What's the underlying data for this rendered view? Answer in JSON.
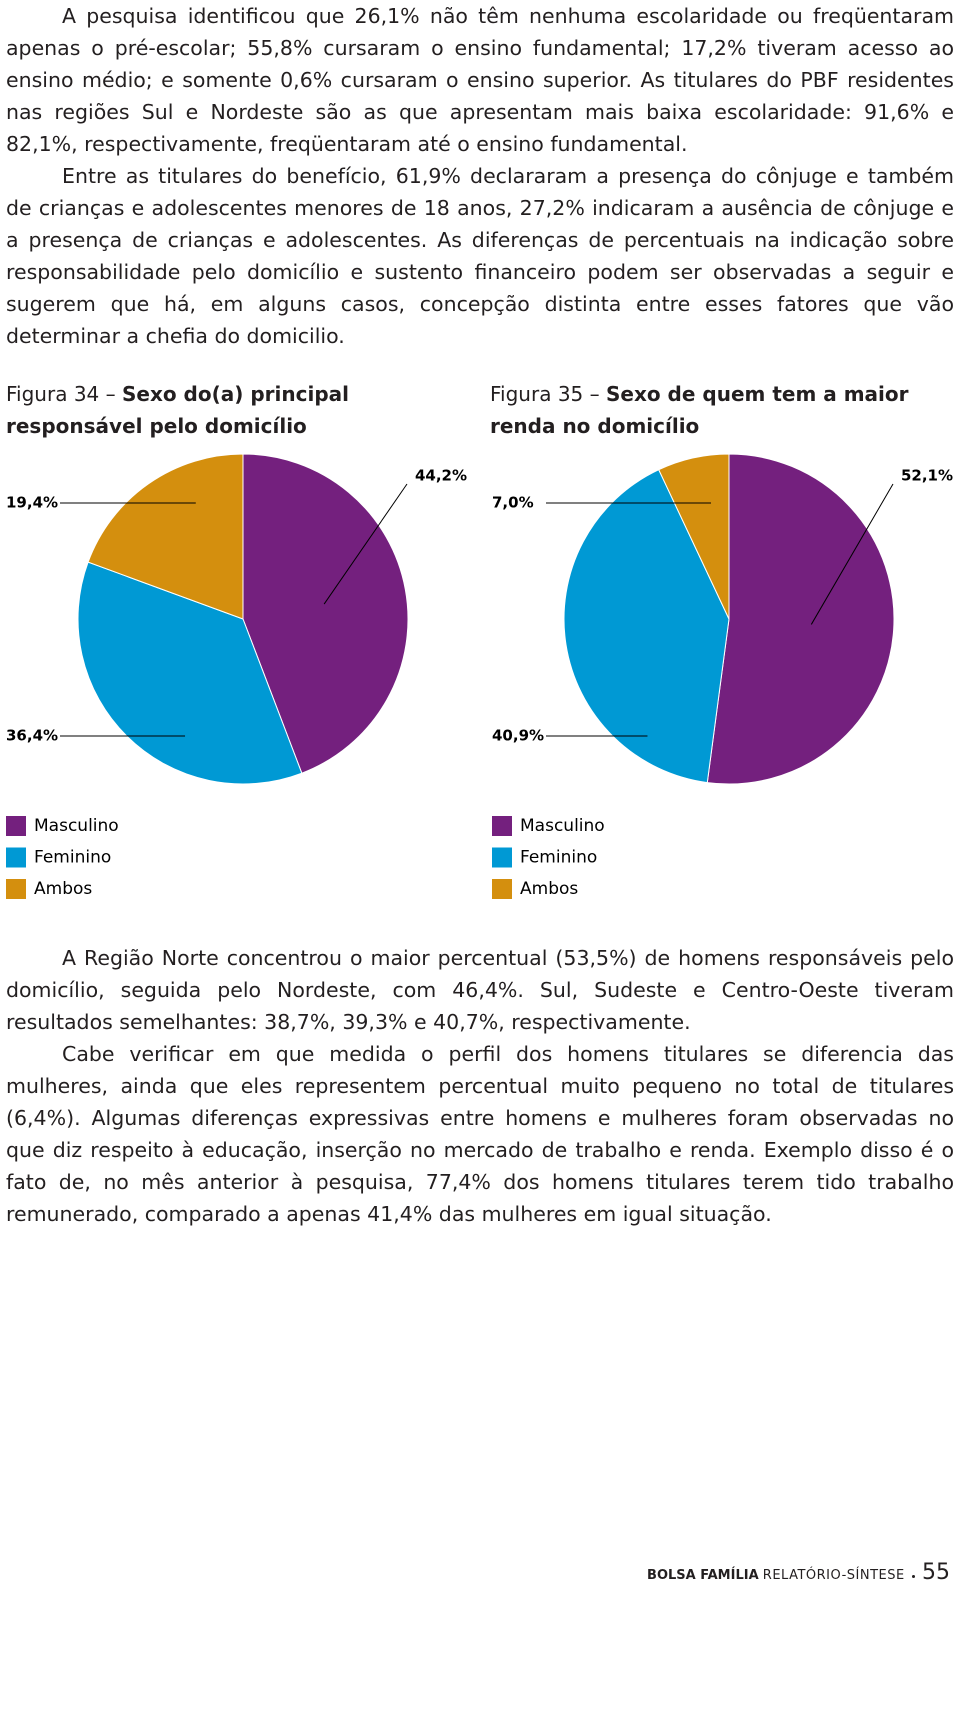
{
  "text_before": [
    "A pesquisa identificou que 26,1% não têm nenhuma escolaridade ou freqüentaram apenas o pré-escolar; 55,8% cursaram o ensino fundamental; 17,2% tiveram acesso ao ensino médio; e somente 0,6% cursaram o ensino superior. As titulares do PBF residentes nas regiões Sul e Nordeste são as que apresentam mais baixa escolaridade: 91,6% e 82,1%, respectivamente, freqüentaram até o ensino fundamental.",
    "Entre as titulares do benefício, 61,9% declararam a presença do cônjuge e também de crianças e adolescentes menores de 18 anos, 27,2% indicaram a ausência de cônjuge e a presença de crianças e adolescentes. As diferenças de percentuais na indicação sobre responsabilidade pelo domicílio e sustento financeiro podem ser observadas a seguir e sugerem que há, em alguns casos, concepção distinta entre esses fatores que vão determinar a chefia do domicilio."
  ],
  "chart_data": [
    {
      "type": "pie",
      "figure_label": "Figura 34 –",
      "title": "Sexo do(a) principal responsável pelo domicílio",
      "categories": [
        "Masculino",
        "Feminino",
        "Ambos"
      ],
      "values": [
        44.2,
        36.4,
        19.4
      ],
      "value_labels": [
        "44,2%",
        "36,4%",
        "19,4%"
      ],
      "colors": [
        "#74207e",
        "#0099d4",
        "#d48f0e"
      ]
    },
    {
      "type": "pie",
      "figure_label": "Figura 35 –",
      "title": "Sexo de quem tem a maior renda no domicílio",
      "categories": [
        "Masculino",
        "Feminino",
        "Ambos"
      ],
      "values": [
        52.1,
        40.9,
        7.0
      ],
      "value_labels": [
        "52,1%",
        "40,9%",
        "7,0%"
      ],
      "colors": [
        "#74207e",
        "#0099d4",
        "#d48f0e"
      ]
    }
  ],
  "text_after": [
    "A Região Norte concentrou o maior percentual (53,5%) de homens responsáveis pelo domicílio, seguida pelo Nordeste, com 46,4%. Sul, Sudeste e Centro-Oeste tiveram resultados semelhantes: 38,7%, 39,3% e 40,7%, respectivamente.",
    "Cabe verificar em que medida o perfil dos homens titulares se diferencia das mulheres, ainda que eles representem percentual muito pequeno no total de titulares (6,4%). Algumas diferenças expressivas entre homens e mulheres foram observadas no que diz respeito à educação, inserção no mercado de trabalho e renda. Exemplo disso é o fato de, no mês anterior à pesquisa, 77,4% dos homens titulares terem tido trabalho remunerado, comparado a apenas 41,4% das mulheres em igual situação."
  ],
  "footer": {
    "publication": "BOLSA FAMÍLIA",
    "subtitle": "RELATÓRIO-SÍNTESE",
    "page": "55"
  }
}
